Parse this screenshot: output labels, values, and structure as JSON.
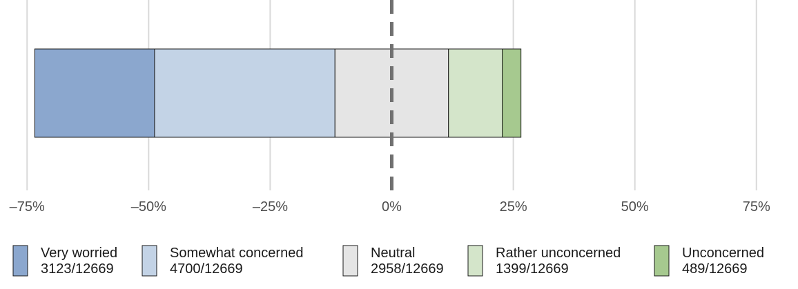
{
  "chart_data": {
    "type": "bar",
    "orientation": "horizontal",
    "stacked": "diverging",
    "xlim": [
      -0.8,
      0.8
    ],
    "x_ticks": [
      -0.75,
      -0.5,
      -0.25,
      0,
      0.25,
      0.5,
      0.75
    ],
    "x_tick_labels": [
      "–75%",
      "–50%",
      "–25%",
      "0%",
      "25%",
      "50%",
      "75%"
    ],
    "center_line": 0,
    "grid": "vertical-major",
    "legend_position": "bottom",
    "total": 12669,
    "series": [
      {
        "name": "Very worried",
        "count": 3123,
        "label": "3123/12669",
        "value": 0.2465,
        "color": "#8BA7CE"
      },
      {
        "name": "Somewhat concerned",
        "count": 4700,
        "label": "4700/12669",
        "value": 0.371,
        "color": "#C3D3E6"
      },
      {
        "name": "Neutral",
        "count": 2958,
        "label": "2958/12669",
        "value": 0.2335,
        "color": "#E5E5E5"
      },
      {
        "name": "Rather unconcerned",
        "count": 1399,
        "label": "1399/12669",
        "value": 0.1104,
        "color": "#D4E5CA"
      },
      {
        "name": "Unconcerned",
        "count": 489,
        "label": "489/12669",
        "value": 0.0386,
        "color": "#A6C98F"
      }
    ],
    "neutral_index": 2
  }
}
